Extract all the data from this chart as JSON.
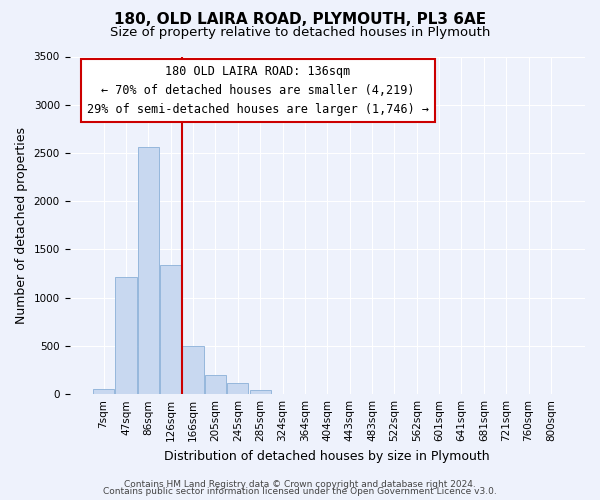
{
  "title": "180, OLD LAIRA ROAD, PLYMOUTH, PL3 6AE",
  "subtitle": "Size of property relative to detached houses in Plymouth",
  "xlabel": "Distribution of detached houses by size in Plymouth",
  "ylabel": "Number of detached properties",
  "bar_color": "#c8d8f0",
  "bar_edge_color": "#8ab0d8",
  "bin_labels": [
    "7sqm",
    "47sqm",
    "86sqm",
    "126sqm",
    "166sqm",
    "205sqm",
    "245sqm",
    "285sqm",
    "324sqm",
    "364sqm",
    "404sqm",
    "443sqm",
    "483sqm",
    "522sqm",
    "562sqm",
    "601sqm",
    "641sqm",
    "681sqm",
    "721sqm",
    "760sqm",
    "800sqm"
  ],
  "bar_values": [
    55,
    1215,
    2560,
    1340,
    495,
    200,
    115,
    45,
    5,
    2,
    2,
    1,
    1,
    0,
    0,
    0,
    0,
    0,
    0,
    0,
    0
  ],
  "ylim": [
    0,
    3500
  ],
  "yticks": [
    0,
    500,
    1000,
    1500,
    2000,
    2500,
    3000,
    3500
  ],
  "vline_color": "#cc0000",
  "annotation_text": "180 OLD LAIRA ROAD: 136sqm\n← 70% of detached houses are smaller (4,219)\n29% of semi-detached houses are larger (1,746) →",
  "annotation_box_color": "#ffffff",
  "annotation_box_edge_color": "#cc0000",
  "footnote1": "Contains HM Land Registry data © Crown copyright and database right 2024.",
  "footnote2": "Contains public sector information licensed under the Open Government Licence v3.0.",
  "background_color": "#eef2fc",
  "grid_color": "#ffffff",
  "title_fontsize": 11,
  "subtitle_fontsize": 9.5,
  "axis_label_fontsize": 9,
  "tick_fontsize": 7.5,
  "annotation_fontsize": 8.5,
  "footnote_fontsize": 6.5
}
